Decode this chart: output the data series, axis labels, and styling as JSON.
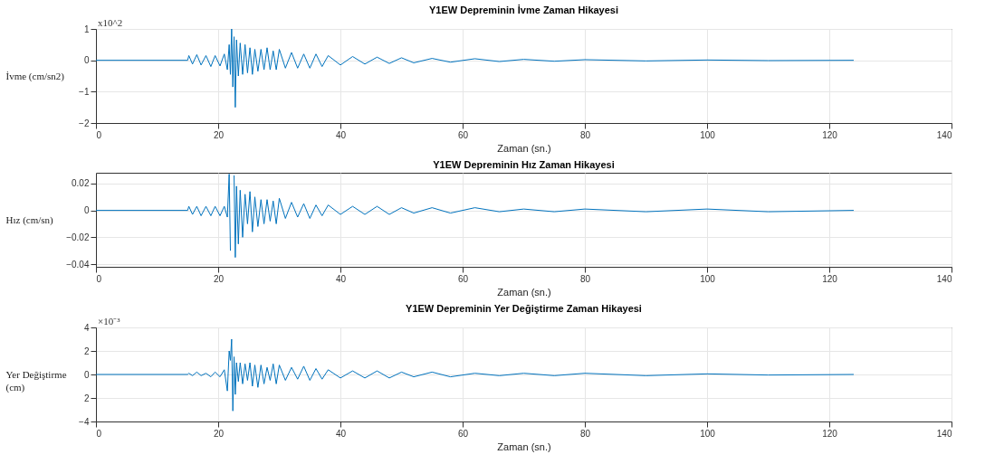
{
  "chart_data": [
    {
      "type": "line",
      "title": "Y1EW Depreminin İvme Zaman Hikayesi",
      "xlabel": "Zaman (sn.)",
      "ylabel": "İvme (cm/sn2)",
      "annotations": [
        "x10^2"
      ],
      "xlim": [
        0,
        140
      ],
      "xticks": [
        0,
        20,
        40,
        60,
        80,
        100,
        120,
        140
      ],
      "ylim": [
        -2,
        1
      ],
      "yticks": [
        -2,
        -1,
        0,
        1
      ],
      "grid": true,
      "series": [
        {
          "color": "#0072bd",
          "x": [
            0,
            15,
            15.2,
            15.8,
            16.5,
            17.2,
            18,
            18.8,
            19.5,
            20.3,
            21,
            21.5,
            21.8,
            22.0,
            22.2,
            22.4,
            22.6,
            22.8,
            23.0,
            23.3,
            23.6,
            24,
            24.4,
            24.8,
            25.2,
            25.6,
            26,
            26.5,
            27,
            27.5,
            28,
            28.5,
            29,
            29.5,
            30,
            31,
            32,
            33,
            34,
            35,
            36,
            37,
            38,
            40,
            42,
            44,
            46,
            48,
            50,
            52,
            55,
            58,
            62,
            66,
            70,
            75,
            80,
            90,
            100,
            110,
            124
          ],
          "values": [
            0,
            0,
            0.15,
            -0.12,
            0.18,
            -0.15,
            0.15,
            -0.2,
            0.15,
            -0.18,
            0.2,
            -0.3,
            0.5,
            -0.45,
            1.0,
            -0.85,
            0.75,
            -1.5,
            0.65,
            -0.5,
            0.55,
            -0.45,
            0.5,
            -0.4,
            0.4,
            -0.45,
            0.35,
            -0.35,
            0.35,
            -0.3,
            0.4,
            -0.3,
            0.3,
            -0.3,
            0.35,
            -0.25,
            0.25,
            -0.25,
            0.2,
            -0.25,
            0.2,
            -0.2,
            0.15,
            -0.15,
            0.12,
            -0.12,
            0.1,
            -0.1,
            0.08,
            -0.08,
            0.06,
            -0.06,
            0.05,
            -0.04,
            0.03,
            -0.03,
            0.02,
            -0.02,
            0.01,
            -0.01,
            0
          ]
        }
      ]
    },
    {
      "type": "line",
      "title": "Y1EW Depreminin Hız Zaman Hikayesi",
      "xlabel": "Zaman (sn.)",
      "ylabel": "Hız (cm/sn)",
      "xlim": [
        0,
        140
      ],
      "xticks": [
        0,
        20,
        40,
        60,
        80,
        100,
        120,
        140
      ],
      "ylim": [
        -0.042,
        0.028
      ],
      "yticks": [
        -0.04,
        -0.02,
        0,
        0.02
      ],
      "grid": true,
      "series": [
        {
          "color": "#0072bd",
          "x": [
            0,
            15,
            15.2,
            15.8,
            16.5,
            17.2,
            18,
            18.8,
            19.5,
            20.3,
            21,
            21.5,
            21.8,
            22.0,
            22.2,
            22.4,
            22.6,
            22.8,
            23.0,
            23.3,
            23.6,
            24,
            24.4,
            24.8,
            25.2,
            25.6,
            26,
            26.5,
            27,
            27.5,
            28,
            28.5,
            29,
            29.5,
            30,
            31,
            32,
            33,
            34,
            35,
            36,
            37,
            38,
            40,
            42,
            44,
            46,
            48,
            50,
            52,
            55,
            58,
            62,
            66,
            70,
            75,
            80,
            90,
            100,
            110,
            124
          ],
          "values": [
            0,
            0,
            0.003,
            -0.003,
            0.003,
            -0.004,
            0.003,
            -0.004,
            0.003,
            -0.004,
            0.003,
            -0.005,
            0.027,
            -0.03,
            null,
            null,
            0.026,
            -0.035,
            0.018,
            -0.025,
            0.015,
            -0.02,
            0.012,
            -0.01,
            0.014,
            -0.016,
            0.01,
            -0.012,
            0.008,
            -0.01,
            0.008,
            -0.008,
            0.007,
            -0.01,
            0.009,
            -0.006,
            0.006,
            -0.005,
            0.005,
            -0.006,
            0.004,
            -0.004,
            0.004,
            -0.003,
            0.003,
            -0.003,
            0.003,
            -0.003,
            0.002,
            -0.002,
            0.002,
            -0.002,
            0.002,
            -0.001,
            0.001,
            -0.001,
            0.001,
            -0.001,
            0.001,
            -0.001,
            0
          ]
        }
      ]
    },
    {
      "type": "line",
      "title": "Y1EW Depreminin Yer Değiştirme Zaman Hikayesi",
      "xlabel": "Zaman (sn.)",
      "ylabel": "Yer Değiştirme (cm)",
      "annotations": [
        "×10⁻³"
      ],
      "xlim": [
        0,
        140
      ],
      "xticks": [
        0,
        20,
        40,
        60,
        80,
        100,
        120,
        140
      ],
      "ylim": [
        -4,
        4
      ],
      "yticks": [
        -4,
        {
          "value": -2,
          "label": "2"
        },
        0,
        2,
        4
      ],
      "grid": true,
      "series": [
        {
          "color": "#0072bd",
          "x": [
            0,
            15,
            15.2,
            15.8,
            16.5,
            17.2,
            18,
            18.8,
            19.5,
            20.3,
            21,
            21.5,
            21.8,
            22.0,
            22.2,
            22.4,
            22.6,
            22.8,
            23.0,
            23.3,
            23.6,
            24,
            24.4,
            24.8,
            25.2,
            25.6,
            26,
            26.5,
            27,
            27.5,
            28,
            28.5,
            29,
            29.5,
            30,
            31,
            32,
            33,
            34,
            35,
            36,
            37,
            38,
            40,
            42,
            44,
            46,
            48,
            50,
            52,
            55,
            58,
            62,
            66,
            70,
            75,
            80,
            90,
            100,
            110,
            124
          ],
          "values": [
            0,
            0,
            0.1,
            -0.1,
            0.2,
            -0.1,
            0.1,
            -0.2,
            0.2,
            -0.2,
            0.4,
            -1.4,
            2.0,
            1.2,
            3.0,
            -3.1,
            1.5,
            -1.7,
            1.0,
            -0.6,
            1.0,
            -0.8,
            0.9,
            -0.5,
            1.0,
            -1.0,
            0.8,
            -1.1,
            0.8,
            -0.8,
            0.6,
            -0.5,
            0.9,
            -0.8,
            0.8,
            -0.5,
            0.6,
            -0.4,
            0.7,
            -0.5,
            0.5,
            -0.4,
            0.4,
            -0.3,
            0.3,
            -0.3,
            0.3,
            -0.3,
            0.2,
            -0.2,
            0.2,
            -0.2,
            0.1,
            -0.1,
            0.1,
            -0.1,
            0.1,
            -0.1,
            0.05,
            -0.05,
            0
          ]
        }
      ]
    }
  ]
}
